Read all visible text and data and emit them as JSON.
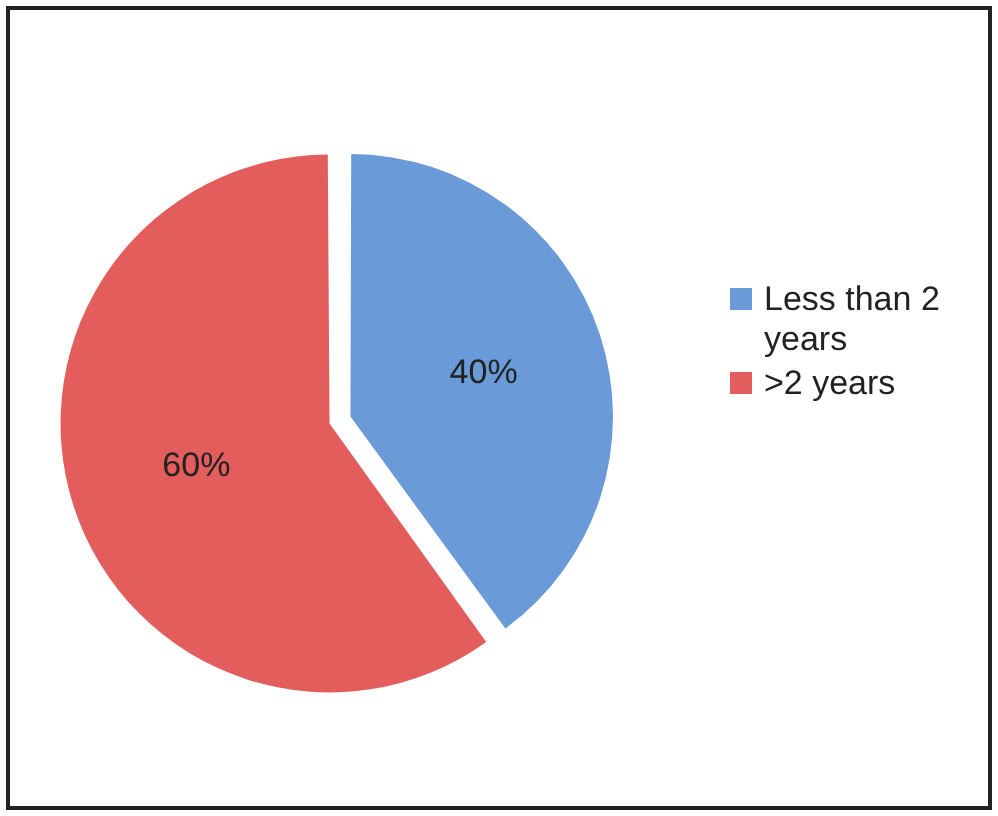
{
  "chart_data": {
    "type": "pie",
    "categories": [
      "Less than 2 years",
      ">2 years"
    ],
    "values": [
      40,
      60
    ],
    "colors": [
      "#6a9bd8",
      "#e35d5c"
    ],
    "value_labels": [
      "40%",
      "60%"
    ],
    "legend": "right"
  }
}
